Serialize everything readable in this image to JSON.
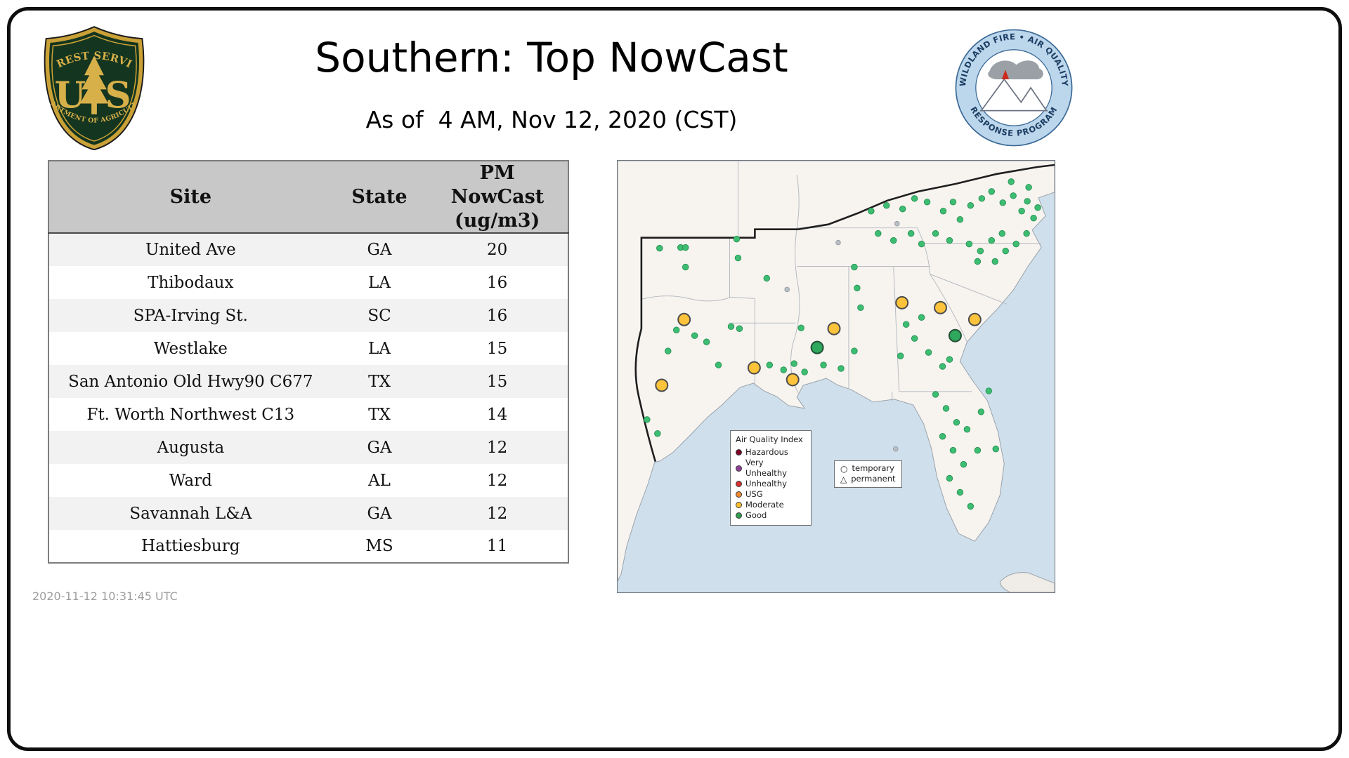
{
  "header": {
    "title": "Southern: Top NowCast",
    "subtitle": "As of  4 AM, Nov 12, 2020 (CST)"
  },
  "footer": {
    "timestamp": "2020-11-12 10:31:45 UTC"
  },
  "logos": {
    "forest_service": {
      "arc_top": "FOREST SERVICE",
      "monogram_left": "U",
      "monogram_right": "S",
      "arc_bottom": "DEPARTMENT OF AGRICULTURE"
    },
    "airfire": {
      "arc_top": "WILDLAND FIRE • AIR QUALITY",
      "arc_bottom": "RESPONSE PROGRAM"
    }
  },
  "table": {
    "columns": [
      "Site",
      "State",
      "PM NowCast (ug/m3)"
    ],
    "rows": [
      [
        "United Ave",
        "GA",
        "20"
      ],
      [
        "Thibodaux",
        "LA",
        "16"
      ],
      [
        "SPA-Irving St.",
        "SC",
        "16"
      ],
      [
        "Westlake",
        "LA",
        "15"
      ],
      [
        "San Antonio Old Hwy90 C677",
        "TX",
        "15"
      ],
      [
        "Ft. Worth Northwest C13",
        "TX",
        "14"
      ],
      [
        "Augusta",
        "GA",
        "12"
      ],
      [
        "Ward",
        "AL",
        "12"
      ],
      [
        "Savannah L&A",
        "GA",
        "12"
      ],
      [
        "Hattiesburg",
        "MS",
        "11"
      ]
    ]
  },
  "map": {
    "legend": {
      "title": "Air Quality Index",
      "items": [
        {
          "label": "Hazardous",
          "color": "#7e0023"
        },
        {
          "label": "Very Unhealthy",
          "color": "#8f3f97"
        },
        {
          "label": "Unhealthy",
          "color": "#d7302e"
        },
        {
          "label": "USG",
          "color": "#f08a2e"
        },
        {
          "label": "Moderate",
          "color": "#fdc12f"
        },
        {
          "label": "Good",
          "color": "#2f9e4f"
        }
      ]
    },
    "symbol_legend": {
      "temporary": "temporary",
      "permanent": "permanent"
    },
    "colors": {
      "water": "#cfe0ec",
      "land": "#f7f4f0",
      "good": "#3dbd71",
      "good_large": "#2fa75c",
      "moderate": "#fcc33b",
      "inactive": "#b9bec6"
    },
    "markers": {
      "moderate_large": [
        [
          95,
          227
        ],
        [
          63,
          321
        ],
        [
          195,
          296
        ],
        [
          250,
          313
        ],
        [
          309,
          240
        ],
        [
          406,
          203
        ],
        [
          461,
          210
        ],
        [
          510,
          227
        ]
      ],
      "good_large": [
        [
          285,
          267
        ],
        [
          482,
          250
        ]
      ],
      "inactive_small": [
        [
          315,
          117
        ],
        [
          242,
          184
        ],
        [
          399,
          90
        ],
        [
          397,
          412
        ]
      ],
      "good_small": [
        [
          60,
          125
        ],
        [
          90,
          124
        ],
        [
          97,
          152
        ],
        [
          172,
          139
        ],
        [
          213,
          168
        ],
        [
          97,
          124
        ],
        [
          170,
          112
        ],
        [
          84,
          242
        ],
        [
          110,
          250
        ],
        [
          127,
          259
        ],
        [
          72,
          272
        ],
        [
          144,
          292
        ],
        [
          162,
          237
        ],
        [
          174,
          240
        ],
        [
          42,
          370
        ],
        [
          57,
          390
        ],
        [
          217,
          292
        ],
        [
          237,
          299
        ],
        [
          252,
          290
        ],
        [
          267,
          302
        ],
        [
          262,
          239
        ],
        [
          294,
          292
        ],
        [
          319,
          297
        ],
        [
          338,
          272
        ],
        [
          347,
          210
        ],
        [
          342,
          182
        ],
        [
          338,
          152
        ],
        [
          362,
          72
        ],
        [
          384,
          64
        ],
        [
          407,
          69
        ],
        [
          424,
          54
        ],
        [
          442,
          59
        ],
        [
          465,
          72
        ],
        [
          479,
          59
        ],
        [
          489,
          84
        ],
        [
          504,
          64
        ],
        [
          520,
          54
        ],
        [
          534,
          44
        ],
        [
          550,
          60
        ],
        [
          565,
          50
        ],
        [
          577,
          72
        ],
        [
          585,
          58
        ],
        [
          594,
          82
        ],
        [
          562,
          30
        ],
        [
          587,
          38
        ],
        [
          372,
          104
        ],
        [
          394,
          114
        ],
        [
          419,
          104
        ],
        [
          434,
          119
        ],
        [
          454,
          104
        ],
        [
          474,
          114
        ],
        [
          502,
          119
        ],
        [
          514,
          144
        ],
        [
          534,
          114
        ],
        [
          549,
          104
        ],
        [
          569,
          119
        ],
        [
          584,
          104
        ],
        [
          554,
          129
        ],
        [
          539,
          144
        ],
        [
          518,
          129
        ],
        [
          412,
          234
        ],
        [
          424,
          254
        ],
        [
          444,
          274
        ],
        [
          464,
          294
        ],
        [
          404,
          279
        ],
        [
          434,
          224
        ],
        [
          474,
          284
        ],
        [
          454,
          334
        ],
        [
          469,
          354
        ],
        [
          484,
          374
        ],
        [
          464,
          394
        ],
        [
          479,
          414
        ],
        [
          494,
          434
        ],
        [
          474,
          454
        ],
        [
          489,
          474
        ],
        [
          504,
          494
        ],
        [
          514,
          414
        ],
        [
          499,
          384
        ],
        [
          519,
          359
        ],
        [
          530,
          329
        ],
        [
          540,
          412
        ],
        [
          600,
          67
        ]
      ]
    }
  }
}
